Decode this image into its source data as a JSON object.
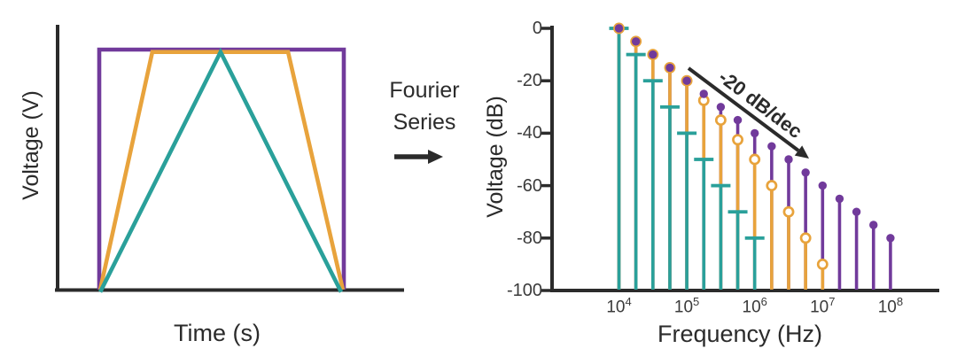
{
  "figure": {
    "background": "#ffffff",
    "axis_color": "#2b2b2b",
    "tick_label_color": "#3a3a3a"
  },
  "left_panel": {
    "ylabel": "Voltage (V)",
    "xlabel": "Time (s)",
    "waveforms": [
      {
        "name": "square wave",
        "color": "#713a9b",
        "points": [
          [
            0,
            0
          ],
          [
            0,
            1
          ],
          [
            1,
            1
          ],
          [
            1,
            0
          ]
        ]
      },
      {
        "name": "trapezoid wave",
        "color": "#e8a33c",
        "points": [
          [
            0.004,
            0
          ],
          [
            0.217,
            0.99
          ],
          [
            0.772,
            0.99
          ],
          [
            0.996,
            0
          ]
        ]
      },
      {
        "name": "triangle wave",
        "color": "#2aa09a",
        "points": [
          [
            0.004,
            -0.01
          ],
          [
            0.496,
            0.99
          ],
          [
            0.989,
            -0.01
          ]
        ]
      }
    ]
  },
  "transform_label": {
    "line1": "Fourier",
    "line2": "Series",
    "arrow_direction": "right"
  },
  "chart_data": {
    "type": "stem",
    "xlabel": "Frequency (Hz)",
    "ylabel": "Voltage (dB)",
    "x_scale": "log",
    "xlim_hz": [
      6000,
      180000000
    ],
    "ylim_db": [
      -100,
      0
    ],
    "grid": "off",
    "ytick_values": [
      0,
      -20,
      -40,
      -60,
      -80,
      -100
    ],
    "ytick_labels": [
      "0",
      "-20",
      "-40",
      "-60",
      "-80",
      "-100"
    ],
    "xticks": [
      {
        "base": "10",
        "exp": 4
      },
      {
        "base": "10",
        "exp": 5
      },
      {
        "base": "10",
        "exp": 6
      },
      {
        "base": "10",
        "exp": 7
      },
      {
        "base": "10",
        "exp": 8
      }
    ],
    "annotation": {
      "text": "-20 dB/dec",
      "slope_db_per_decade": -20
    },
    "series": [
      {
        "name": "square wave harmonics",
        "marker": "filled-circle",
        "color": "#713a9b",
        "frequencies": [
          10000,
          17783,
          31623,
          56234,
          100000,
          177828,
          316228,
          562341,
          1000000,
          1778279,
          3162278,
          5623413,
          10000000,
          17782794,
          31622777,
          56234133,
          100000000
        ],
        "values_db": [
          0,
          -5,
          -10,
          -15,
          -20,
          -25,
          -30,
          -35,
          -40,
          -45,
          -50,
          -55,
          -60,
          -65,
          -70,
          -75,
          -80
        ]
      },
      {
        "name": "trapezoid wave harmonics",
        "marker": "open-circle",
        "color": "#e8a33c",
        "frequencies": [
          10000,
          17783,
          31623,
          56234,
          100000,
          177828,
          316228,
          562341,
          1000000,
          1778279,
          3162278,
          5623413,
          10000000
        ],
        "values_db": [
          0,
          -5,
          -10,
          -15,
          -20,
          -27.5,
          -35,
          -42.5,
          -50,
          -60,
          -70,
          -80,
          -90
        ]
      },
      {
        "name": "triangle wave harmonics",
        "marker": "dash",
        "color": "#2aa09a",
        "frequencies": [
          10000,
          17783,
          31623,
          56234,
          100000,
          177828,
          316228,
          562341,
          1000000
        ],
        "values_db": [
          0,
          -10,
          -20,
          -30,
          -40,
          -50,
          -60,
          -70,
          -80
        ]
      }
    ]
  }
}
